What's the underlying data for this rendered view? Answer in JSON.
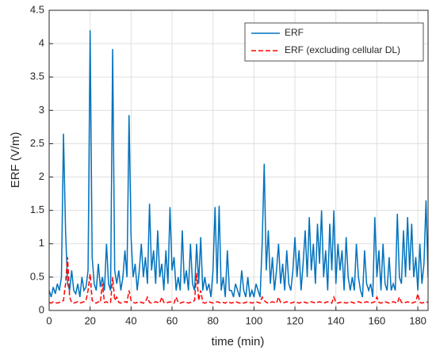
{
  "chart_data": {
    "type": "line",
    "x_label": "time (min)",
    "y_label": "ERF (V/m)",
    "x": [
      0,
      1,
      2,
      3,
      4,
      5,
      6,
      7,
      8,
      9,
      10,
      11,
      12,
      13,
      14,
      15,
      16,
      17,
      18,
      19,
      20,
      21,
      22,
      23,
      24,
      25,
      26,
      27,
      28,
      29,
      30,
      31,
      32,
      33,
      34,
      35,
      36,
      37,
      38,
      39,
      40,
      41,
      42,
      43,
      44,
      45,
      46,
      47,
      48,
      49,
      50,
      51,
      52,
      53,
      54,
      55,
      56,
      57,
      58,
      59,
      60,
      61,
      62,
      63,
      64,
      65,
      66,
      67,
      68,
      69,
      70,
      71,
      72,
      73,
      74,
      75,
      76,
      77,
      78,
      79,
      80,
      81,
      82,
      83,
      84,
      85,
      86,
      87,
      88,
      89,
      90,
      91,
      92,
      93,
      94,
      95,
      96,
      97,
      98,
      99,
      100,
      101,
      102,
      103,
      104,
      105,
      106,
      107,
      108,
      109,
      110,
      111,
      112,
      113,
      114,
      115,
      116,
      117,
      118,
      119,
      120,
      121,
      122,
      123,
      124,
      125,
      126,
      127,
      128,
      129,
      130,
      131,
      132,
      133,
      134,
      135,
      136,
      137,
      138,
      139,
      140,
      141,
      142,
      143,
      144,
      145,
      146,
      147,
      148,
      149,
      150,
      151,
      152,
      153,
      154,
      155,
      156,
      157,
      158,
      159,
      160,
      161,
      162,
      163,
      164,
      165,
      166,
      167,
      168,
      169,
      170,
      171,
      172,
      173,
      174,
      175,
      176,
      177,
      178,
      179,
      180,
      181,
      182,
      183,
      184,
      185
    ],
    "series": [
      {
        "name": "ERF",
        "color": "#0072bd",
        "dash": false,
        "values": [
          0.3,
          0.2,
          0.35,
          0.25,
          0.4,
          0.3,
          0.5,
          2.65,
          1.2,
          0.4,
          0.3,
          0.6,
          0.3,
          0.25,
          0.4,
          0.2,
          0.5,
          0.3,
          0.35,
          0.6,
          4.2,
          0.8,
          0.4,
          0.3,
          0.7,
          0.35,
          0.5,
          0.3,
          1.0,
          0.4,
          0.3,
          3.92,
          0.6,
          0.4,
          0.6,
          0.3,
          0.5,
          0.9,
          0.5,
          2.93,
          1.1,
          0.5,
          0.7,
          0.3,
          0.6,
          1.0,
          0.5,
          0.8,
          0.4,
          1.6,
          0.6,
          0.9,
          0.4,
          1.2,
          0.5,
          0.7,
          0.3,
          0.9,
          0.4,
          1.55,
          0.6,
          0.8,
          0.3,
          0.5,
          0.3,
          1.2,
          0.4,
          0.6,
          0.3,
          1.0,
          0.4,
          0.3,
          1.0,
          0.4,
          1.1,
          0.3,
          0.5,
          0.3,
          0.4,
          0.2,
          0.6,
          1.55,
          0.4,
          1.57,
          0.3,
          0.5,
          0.2,
          0.9,
          0.3,
          0.3,
          0.2,
          0.4,
          0.3,
          0.2,
          0.6,
          0.3,
          0.2,
          0.5,
          0.2,
          0.3,
          0.2,
          0.4,
          0.3,
          0.2,
          1.0,
          2.2,
          0.6,
          1.2,
          0.4,
          0.8,
          0.3,
          0.6,
          1.0,
          0.4,
          0.7,
          0.3,
          0.9,
          0.4,
          0.3,
          0.6,
          1.1,
          0.5,
          0.9,
          0.3,
          0.7,
          1.2,
          0.5,
          1.4,
          0.6,
          1.0,
          0.4,
          1.3,
          0.7,
          1.5,
          0.5,
          0.9,
          0.3,
          1.3,
          0.6,
          1.5,
          0.4,
          1.0,
          0.6,
          0.9,
          0.3,
          1.1,
          0.5,
          0.3,
          0.5,
          0.3,
          1.0,
          0.5,
          0.3,
          0.2,
          0.9,
          0.4,
          0.3,
          0.4,
          0.2,
          1.4,
          0.5,
          0.9,
          0.3,
          1.0,
          0.4,
          0.3,
          0.8,
          0.3,
          0.4,
          0.3,
          1.45,
          0.5,
          0.4,
          1.2,
          0.5,
          1.4,
          0.6,
          1.3,
          0.5,
          0.8,
          0.3,
          1.0,
          0.4,
          0.7,
          1.65,
          0.5
        ]
      },
      {
        "name": "ERF (excluding cellular DL)",
        "color": "#ff0000",
        "dash": true,
        "values": [
          0.12,
          0.11,
          0.13,
          0.12,
          0.11,
          0.12,
          0.13,
          0.15,
          0.4,
          0.8,
          0.2,
          0.12,
          0.11,
          0.12,
          0.13,
          0.11,
          0.12,
          0.13,
          0.15,
          0.3,
          0.55,
          0.15,
          0.12,
          0.11,
          0.13,
          0.12,
          0.4,
          0.12,
          0.13,
          0.11,
          0.12,
          0.5,
          0.15,
          0.2,
          0.12,
          0.11,
          0.12,
          0.13,
          0.12,
          0.3,
          0.15,
          0.12,
          0.11,
          0.12,
          0.13,
          0.12,
          0.11,
          0.13,
          0.2,
          0.12,
          0.11,
          0.12,
          0.13,
          0.12,
          0.11,
          0.2,
          0.12,
          0.11,
          0.12,
          0.13,
          0.12,
          0.11,
          0.2,
          0.12,
          0.11,
          0.12,
          0.13,
          0.12,
          0.11,
          0.12,
          0.13,
          0.15,
          0.56,
          0.15,
          0.3,
          0.12,
          0.11,
          0.12,
          0.13,
          0.12,
          0.11,
          0.12,
          0.13,
          0.12,
          0.11,
          0.12,
          0.11,
          0.13,
          0.12,
          0.11,
          0.12,
          0.13,
          0.12,
          0.11,
          0.12,
          0.11,
          0.12,
          0.13,
          0.12,
          0.11,
          0.12,
          0.13,
          0.12,
          0.11,
          0.2,
          0.15,
          0.12,
          0.11,
          0.12,
          0.13,
          0.12,
          0.11,
          0.2,
          0.12,
          0.11,
          0.12,
          0.13,
          0.12,
          0.11,
          0.12,
          0.13,
          0.12,
          0.11,
          0.12,
          0.13,
          0.12,
          0.11,
          0.12,
          0.13,
          0.12,
          0.11,
          0.12,
          0.13,
          0.12,
          0.11,
          0.12,
          0.13,
          0.12,
          0.11,
          0.2,
          0.12,
          0.11,
          0.12,
          0.13,
          0.12,
          0.11,
          0.12,
          0.13,
          0.12,
          0.11,
          0.12,
          0.13,
          0.12,
          0.11,
          0.12,
          0.13,
          0.12,
          0.11,
          0.12,
          0.13,
          0.2,
          0.12,
          0.11,
          0.12,
          0.13,
          0.12,
          0.11,
          0.12,
          0.13,
          0.12,
          0.11,
          0.2,
          0.12,
          0.11,
          0.12,
          0.13,
          0.12,
          0.11,
          0.12,
          0.13,
          0.25,
          0.12,
          0.11,
          0.12,
          0.13,
          0.12
        ]
      }
    ],
    "xlim": [
      0,
      185
    ],
    "xticks": [
      0,
      20,
      40,
      60,
      80,
      100,
      120,
      140,
      160,
      180
    ],
    "ylim": [
      0,
      4.5
    ],
    "yticks": [
      0,
      0.5,
      1,
      1.5,
      2,
      2.5,
      3,
      3.5,
      4,
      4.5
    ],
    "grid": true,
    "legend": "upper right"
  }
}
